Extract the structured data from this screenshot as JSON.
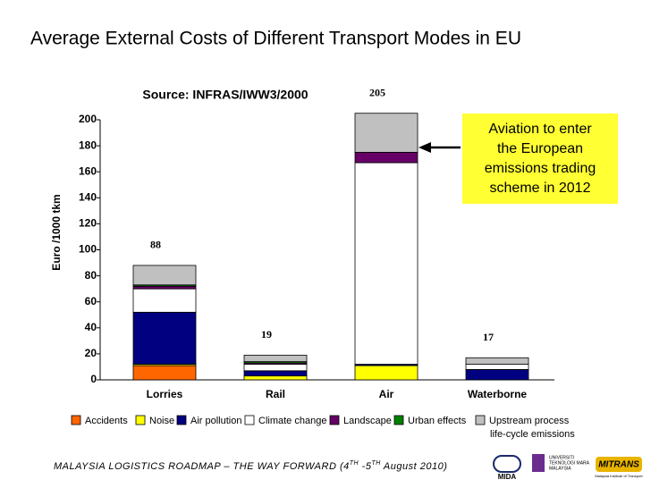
{
  "chart_data": {
    "type": "stacked_bar",
    "title": "Average External Costs of Different Transport Modes in EU",
    "subtitle": "Source: INFRAS/IWW3/2000",
    "y_label": "Euro /1000  tkm",
    "categories": [
      "Lorries",
      "Rail",
      "Air",
      "Waterborne"
    ],
    "series": [
      {
        "name": "Accidents",
        "color": "#ff6600",
        "values": [
          11,
          0,
          0,
          0
        ]
      },
      {
        "name": "Noise",
        "color": "#ffff00",
        "values": [
          1,
          3,
          11,
          0
        ]
      },
      {
        "name": "Air pollution",
        "color": "#000080",
        "values": [
          40,
          4,
          1,
          8
        ]
      },
      {
        "name": "Climate change",
        "color": "#ffffff",
        "values": [
          18,
          5,
          155,
          4
        ]
      },
      {
        "name": "Landscape",
        "color": "#660066",
        "values": [
          2,
          1,
          8,
          0
        ]
      },
      {
        "name": "Urban effects",
        "color": "#008000",
        "values": [
          1,
          1,
          0,
          0
        ]
      },
      {
        "name": "Upstream process",
        "color": "#c0c0c0",
        "values": [
          15,
          5,
          30,
          5
        ]
      }
    ],
    "legend_note": "life-cycle emissions",
    "totals": [
      88,
      19,
      205,
      17
    ],
    "ylim": [
      0,
      200
    ],
    "yticks": [
      0,
      20,
      40,
      60,
      80,
      100,
      120,
      140,
      160,
      180,
      200
    ],
    "annotation": [
      "Aviation to enter",
      "the European",
      "emissions trading",
      "scheme in 2012"
    ]
  },
  "footer": {
    "text": "MALAYSIA LOGISTICS ROADMAP – THE WAY FORWARD (4",
    "sup1": "TH",
    "mid": " -5",
    "sup2": "TH",
    "end": "  August 2010)",
    "logos": [
      "MIDA",
      "UNIVERSITI",
      "TEKNOLOGI MARA",
      "MALAYSIA",
      "MITRANS",
      "Malaysia Institute of Transport"
    ]
  }
}
